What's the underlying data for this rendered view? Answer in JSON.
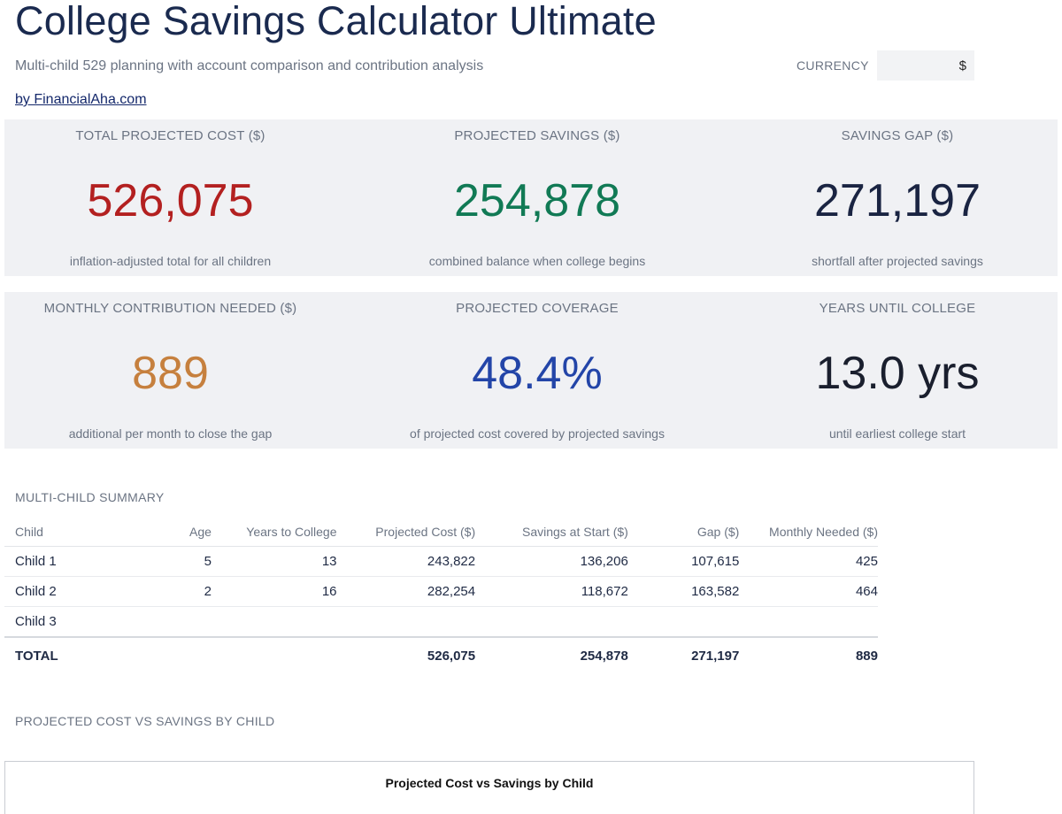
{
  "header": {
    "title": "College Savings Calculator Ultimate",
    "subtitle": "Multi-child 529 planning with account comparison and contribution analysis",
    "byline": "by FinancialAha.com",
    "currency_label": "CURRENCY",
    "currency_value": "$"
  },
  "kpis": {
    "total_cost": {
      "label": "TOTAL PROJECTED COST ($)",
      "value": "526,075",
      "note": "inflation-adjusted total for all children",
      "color": "#b32020"
    },
    "projected_savings": {
      "label": "PROJECTED SAVINGS ($)",
      "value": "254,878",
      "note": "combined balance when college begins",
      "color": "#117a55"
    },
    "savings_gap": {
      "label": "SAVINGS GAP ($)",
      "value": "271,197",
      "note": "shortfall after projected savings",
      "color": "#1a2442"
    },
    "monthly_needed": {
      "label": "MONTHLY CONTRIBUTION NEEDED ($)",
      "value": "889",
      "note": "additional per month to close the gap",
      "color": "#c6803e"
    },
    "coverage": {
      "label": "PROJECTED COVERAGE",
      "value": "48.4%",
      "note": "of projected cost covered by projected savings",
      "color": "#2345a8"
    },
    "years_until": {
      "label": "YEARS UNTIL COLLEGE",
      "value": "13.0 yrs",
      "note": "until earliest college start",
      "color": "#1a1f2e"
    }
  },
  "summary": {
    "title": "MULTI-CHILD SUMMARY",
    "headers": [
      "Child",
      "Age",
      "Years to College",
      "Projected Cost ($)",
      "Savings at Start ($)",
      "Gap ($)",
      "Monthly Needed ($)"
    ],
    "rows": [
      [
        "Child 1",
        "5",
        "13",
        "243,822",
        "136,206",
        "107,615",
        "425"
      ],
      [
        "Child 2",
        "2",
        "16",
        "282,254",
        "118,672",
        "163,582",
        "464"
      ],
      [
        "Child 3",
        "",
        "",
        "",
        "",
        "",
        ""
      ]
    ],
    "total": [
      "TOTAL",
      "",
      "",
      "526,075",
      "254,878",
      "271,197",
      "889"
    ]
  },
  "chart_section": {
    "title": "PROJECTED COST VS SAVINGS BY CHILD",
    "chart_title": "Projected Cost vs Savings by Child"
  }
}
